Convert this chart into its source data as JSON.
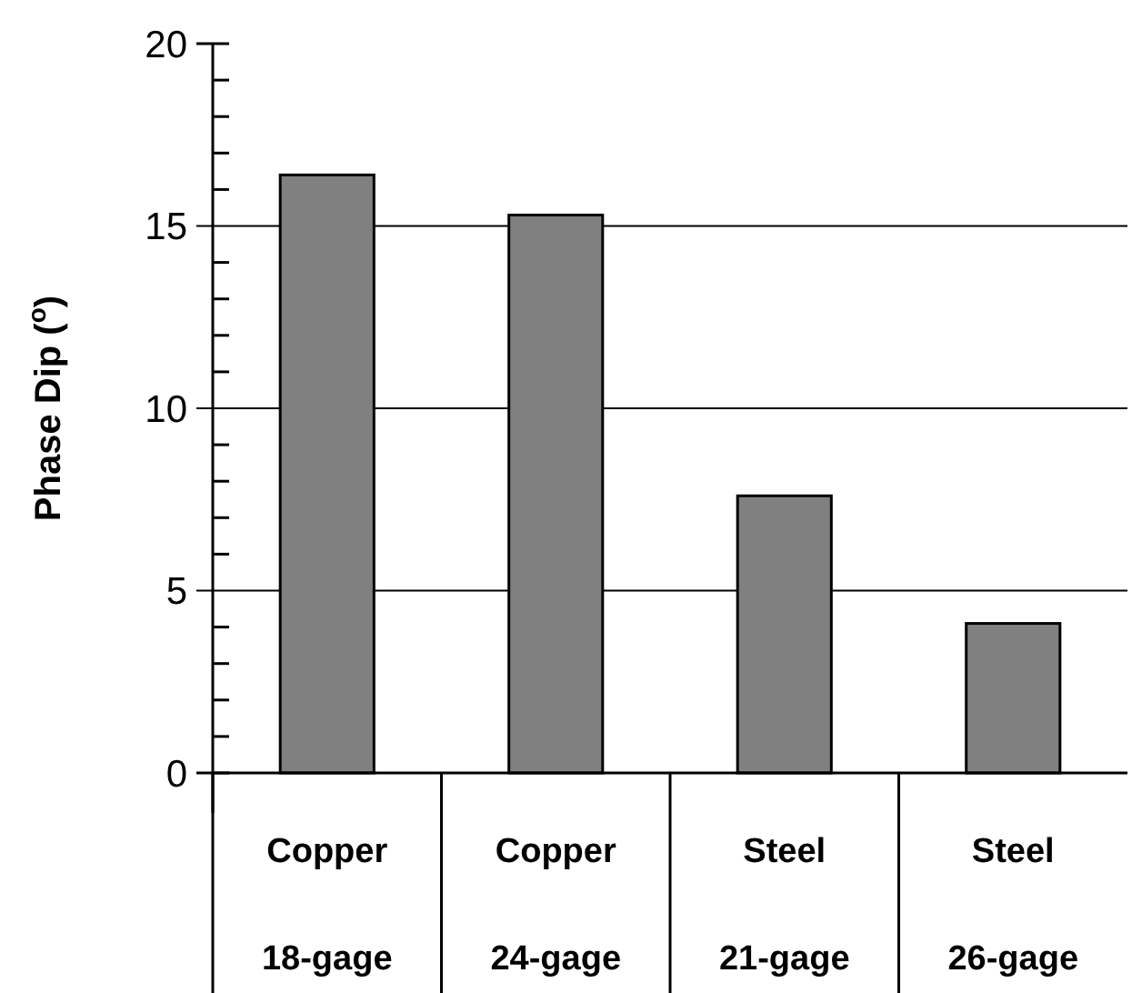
{
  "chart_data": {
    "type": "bar",
    "ylabel": "Phase Dip ($^{o}$)",
    "categories": [
      "Copper 18-gage",
      "Copper 24-gage",
      "Steel 21-gage",
      "Steel 26-gage"
    ],
    "values": [
      16.4,
      15.3,
      7.6,
      4.1
    ],
    "color": "#808080",
    "ylim": [
      0,
      20
    ],
    "yticks": [
      0,
      {
        "value": 1,
        "label": null
      },
      {
        "value": 2,
        "label": null
      },
      {
        "value": 3,
        "label": null
      },
      {
        "value": 4,
        "label": null
      },
      5,
      {
        "value": 6,
        "label": null
      },
      {
        "value": 7,
        "label": null
      },
      {
        "value": 8,
        "label": null
      },
      {
        "value": 9,
        "label": null
      },
      10,
      {
        "value": 11,
        "label": null
      },
      {
        "value": 12,
        "label": null
      },
      {
        "value": 13,
        "label": null
      },
      {
        "value": 14,
        "label": null
      },
      15,
      {
        "value": 16,
        "label": null
      },
      {
        "value": 17,
        "label": null
      },
      {
        "value": 18,
        "label": null
      },
      {
        "value": 19,
        "label": null
      },
      20
    ],
    "grid": "y"
  }
}
